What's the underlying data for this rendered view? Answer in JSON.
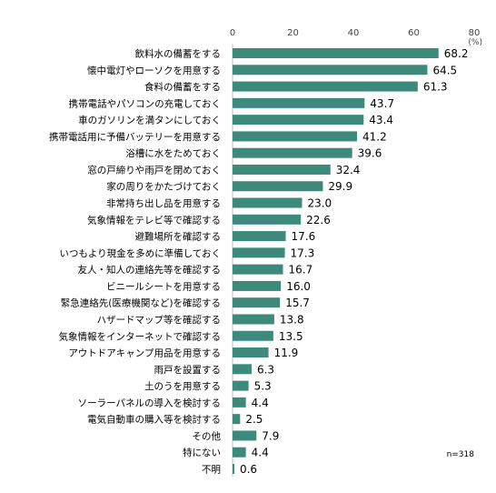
{
  "chart_data": {
    "type": "bar",
    "orientation": "horizontal",
    "categories": [
      "飲料水の備蓄をする",
      "懐中電灯やローソクを用意する",
      "食料の備蓄をする",
      "携帯電話やパソコンの充電しておく",
      "車のガソリンを満タンにしておく",
      "携帯電話用に予備バッテリーを用意する",
      "浴槽に水をためておく",
      "窓の戸締りや雨戸を閉めておく",
      "家の周りをかたづけておく",
      "非常持ち出し品を用意する",
      "気象情報をテレビ等で確認する",
      "避難場所を確認する",
      "いつもより現金を多めに準備しておく",
      "友人・知人の連絡先等を確認する",
      "ビニールシートを用意する",
      "緊急連絡先(医療機関など)を確認する",
      "ハザードマップ等を確認する",
      "気象情報をインターネットで確認する",
      "アウトドアキャンプ用品を用意する",
      "雨戸を設置する",
      "土のうを用意する",
      "ソーラーパネルの導入を検討する",
      "電気自動車の購入等を検討する",
      "その他",
      "特にない",
      "不明"
    ],
    "values": [
      68.2,
      64.5,
      61.3,
      43.7,
      43.4,
      41.2,
      39.6,
      32.4,
      29.9,
      23.0,
      22.6,
      17.6,
      17.3,
      16.7,
      16.0,
      15.7,
      13.8,
      13.5,
      11.9,
      6.3,
      5.3,
      4.4,
      2.5,
      7.9,
      4.4,
      0.6
    ],
    "value_labels": [
      "68.2",
      "64.5",
      "61.3",
      "43.7",
      "43.4",
      "41.2",
      "39.6",
      "32.4",
      "29.9",
      "23.0",
      "22.6",
      "17.6",
      "17.3",
      "16.7",
      "16.0",
      "15.7",
      "13.8",
      "13.5",
      "11.9",
      "6.3",
      "5.3",
      "4.4",
      "2.5",
      "7.9",
      "4.4",
      "0.6"
    ],
    "xlim": [
      0,
      80
    ],
    "xticks": [
      "0",
      "20",
      "40",
      "60",
      "80"
    ],
    "unit": "(%)",
    "note": "n=318",
    "bar_color": "#3d8a7c",
    "grid": false,
    "legend": "none"
  }
}
